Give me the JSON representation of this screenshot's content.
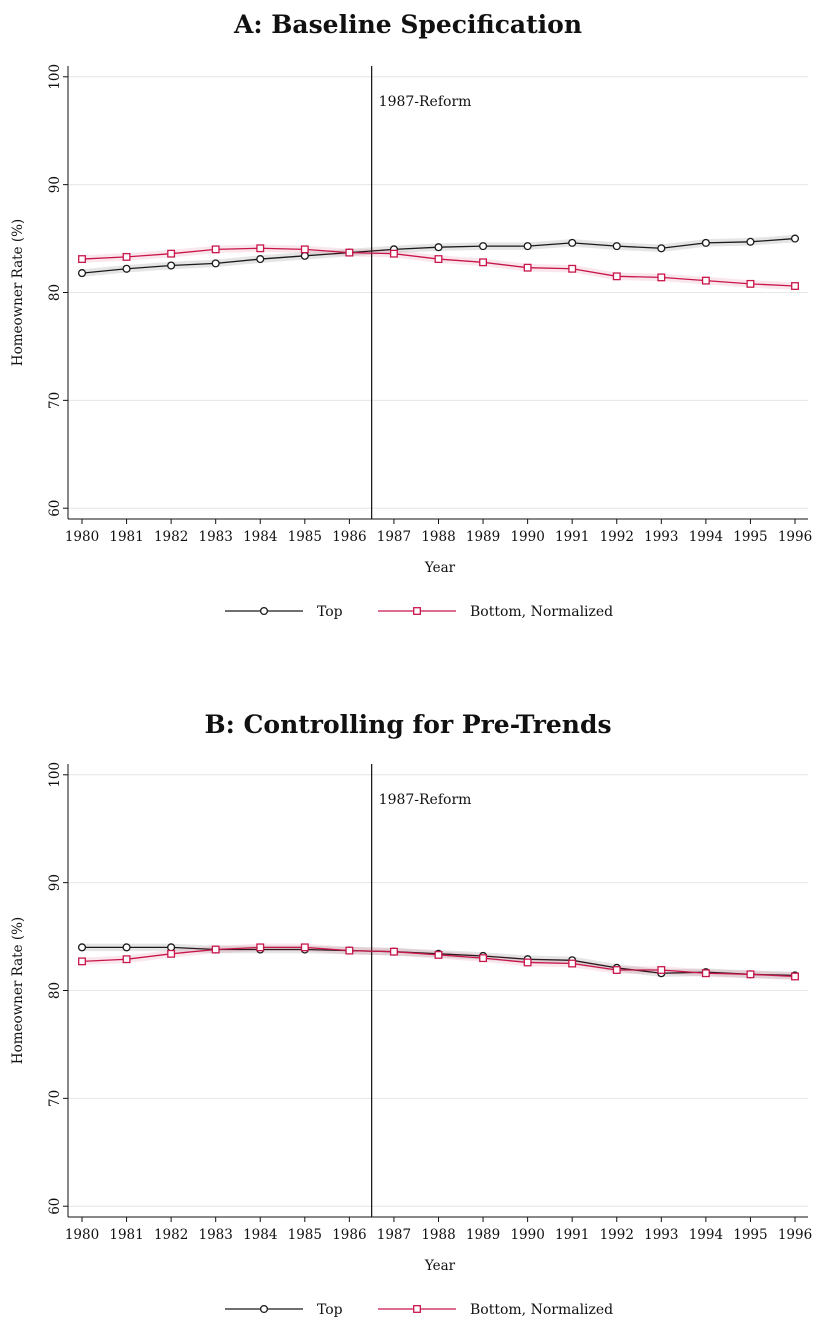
{
  "chart_data": [
    {
      "type": "line",
      "title": "A: Baseline Specification",
      "xlabel": "Year",
      "ylabel": "Homeowner Rate (%)",
      "ylim": [
        59,
        101
      ],
      "yticks": [
        60,
        70,
        80,
        90,
        100
      ],
      "x": [
        1980,
        1981,
        1982,
        1983,
        1984,
        1985,
        1986,
        1987,
        1988,
        1989,
        1990,
        1991,
        1992,
        1993,
        1994,
        1995,
        1996
      ],
      "annotation": {
        "x": 1986.5,
        "label": "1987-Reform"
      },
      "grid": true,
      "legend": "bottom",
      "series": [
        {
          "name": "Top",
          "color": "#1a1a1a",
          "marker": "circle",
          "values": [
            81.8,
            82.2,
            82.5,
            82.7,
            83.1,
            83.4,
            83.7,
            84.0,
            84.2,
            84.3,
            84.3,
            84.6,
            84.3,
            84.1,
            84.6,
            84.7,
            85.0
          ]
        },
        {
          "name": "Bottom, Normalized",
          "color": "#c8164a",
          "marker": "square",
          "values": [
            83.1,
            83.3,
            83.6,
            84.0,
            84.1,
            84.0,
            83.7,
            83.6,
            83.1,
            82.8,
            82.3,
            82.2,
            81.5,
            81.4,
            81.1,
            80.8,
            80.6
          ]
        }
      ]
    },
    {
      "type": "line",
      "title": "B: Controlling for Pre-Trends",
      "xlabel": "Year",
      "ylabel": "Homeowner Rate (%)",
      "ylim": [
        59,
        101
      ],
      "yticks": [
        60,
        70,
        80,
        90,
        100
      ],
      "x": [
        1980,
        1981,
        1982,
        1983,
        1984,
        1985,
        1986,
        1987,
        1988,
        1989,
        1990,
        1991,
        1992,
        1993,
        1994,
        1995,
        1996
      ],
      "annotation": {
        "x": 1986.5,
        "label": "1987-Reform"
      },
      "grid": true,
      "legend": "bottom",
      "series": [
        {
          "name": "Top",
          "color": "#1a1a1a",
          "marker": "circle",
          "values": [
            84.0,
            84.0,
            84.0,
            83.8,
            83.8,
            83.8,
            83.7,
            83.6,
            83.4,
            83.2,
            82.9,
            82.8,
            82.1,
            81.6,
            81.7,
            81.5,
            81.4
          ]
        },
        {
          "name": "Bottom, Normalized",
          "color": "#c8164a",
          "marker": "square",
          "values": [
            82.7,
            82.9,
            83.4,
            83.8,
            84.0,
            84.0,
            83.7,
            83.6,
            83.3,
            83.0,
            82.6,
            82.5,
            81.9,
            81.9,
            81.6,
            81.5,
            81.3
          ]
        }
      ]
    }
  ]
}
